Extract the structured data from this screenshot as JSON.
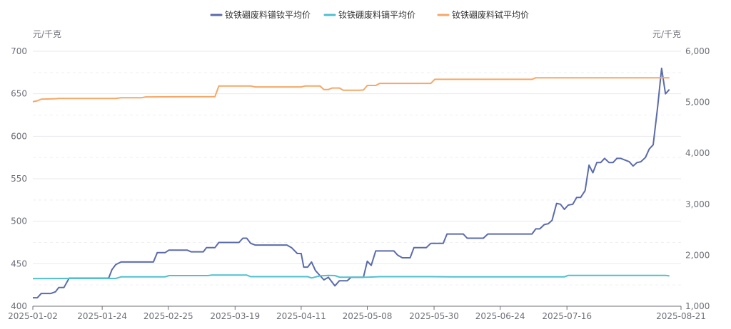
{
  "chart_data": {
    "type": "line",
    "left_unit": "元/千克",
    "right_unit": "元/千克",
    "left_axis": {
      "min": 400,
      "max": 700,
      "ticks": [
        "400",
        "450",
        "500",
        "550",
        "600",
        "650",
        "700"
      ]
    },
    "right_axis": {
      "min": 1000,
      "max": 6000,
      "ticks": [
        "1,000",
        "2,000",
        "3,000",
        "4,000",
        "5,000",
        "6,000"
      ]
    },
    "x_tick_labels": [
      "2025-01-02",
      "2025-01-24",
      "2025-02-25",
      "2025-03-19",
      "2025-04-11",
      "2025-05-08",
      "2025-05-30",
      "2025-06-24",
      "2025-07-16",
      "2025-08-21"
    ],
    "x_domain": [
      0,
      100
    ],
    "x_tick_positions": [
      0,
      10.7,
      20.9,
      31.2,
      41.4,
      51.6,
      61.9,
      72.1,
      82.4,
      100
    ],
    "series": [
      {
        "name": "钕铁硼废料镨钕平均价",
        "color": "#5b6bab",
        "axis": "left",
        "points": [
          [
            0,
            410
          ],
          [
            0.7,
            410
          ],
          [
            1.3,
            415
          ],
          [
            2.8,
            415
          ],
          [
            3.5,
            417
          ],
          [
            4.0,
            422
          ],
          [
            4.8,
            422
          ],
          [
            5.6,
            433
          ],
          [
            11.7,
            433
          ],
          [
            12.2,
            443
          ],
          [
            12.8,
            449
          ],
          [
            13.6,
            452
          ],
          [
            18.6,
            452
          ],
          [
            19.2,
            463
          ],
          [
            20.4,
            463
          ],
          [
            21.0,
            466
          ],
          [
            23.8,
            466
          ],
          [
            24.4,
            464
          ],
          [
            26.3,
            464
          ],
          [
            26.8,
            469
          ],
          [
            28.1,
            469
          ],
          [
            28.7,
            475
          ],
          [
            31.8,
            475
          ],
          [
            32.4,
            480
          ],
          [
            33.0,
            480
          ],
          [
            33.6,
            474
          ],
          [
            34.3,
            472
          ],
          [
            39.2,
            472
          ],
          [
            39.9,
            469
          ],
          [
            40.8,
            462
          ],
          [
            41.4,
            462
          ],
          [
            41.8,
            446
          ],
          [
            42.4,
            446
          ],
          [
            43.0,
            452
          ],
          [
            43.6,
            442
          ],
          [
            44.3,
            436
          ],
          [
            44.9,
            431
          ],
          [
            45.6,
            434
          ],
          [
            46.6,
            424
          ],
          [
            47.3,
            430
          ],
          [
            48.5,
            430
          ],
          [
            49.1,
            434
          ],
          [
            51.0,
            434
          ],
          [
            51.6,
            453
          ],
          [
            52.2,
            448
          ],
          [
            52.9,
            465
          ],
          [
            55.7,
            465
          ],
          [
            56.3,
            460
          ],
          [
            57.0,
            457
          ],
          [
            58.2,
            457
          ],
          [
            58.8,
            469
          ],
          [
            60.7,
            469
          ],
          [
            61.4,
            474
          ],
          [
            63.3,
            474
          ],
          [
            63.9,
            485
          ],
          [
            66.4,
            485
          ],
          [
            67.0,
            480
          ],
          [
            69.5,
            480
          ],
          [
            70.2,
            485
          ],
          [
            76.4,
            485
          ],
          [
            77.0,
            485
          ],
          [
            77.6,
            491
          ],
          [
            78.2,
            491
          ],
          [
            78.9,
            496
          ],
          [
            79.5,
            497
          ],
          [
            80.1,
            501
          ],
          [
            80.8,
            521
          ],
          [
            81.4,
            520
          ],
          [
            82.0,
            514
          ],
          [
            82.6,
            519
          ],
          [
            83.3,
            520
          ],
          [
            83.9,
            528
          ],
          [
            84.5,
            528
          ],
          [
            85.2,
            536
          ],
          [
            85.8,
            566
          ],
          [
            86.4,
            557
          ],
          [
            87.0,
            569
          ],
          [
            87.6,
            569
          ],
          [
            88.2,
            574
          ],
          [
            88.9,
            569
          ],
          [
            89.5,
            569
          ],
          [
            90.1,
            574
          ],
          [
            90.7,
            574
          ],
          [
            92.0,
            570
          ],
          [
            92.6,
            565
          ],
          [
            93.2,
            569
          ],
          [
            93.8,
            570
          ],
          [
            94.5,
            575
          ],
          [
            95.1,
            585
          ],
          [
            95.7,
            590
          ],
          [
            96.4,
            635
          ],
          [
            97.0,
            680
          ],
          [
            97.6,
            650
          ],
          [
            98.2,
            655
          ]
        ]
      },
      {
        "name": "钕铁硼废料镝平均价",
        "color": "#4ec0cf",
        "axis": "right",
        "points": [
          [
            0,
            1540
          ],
          [
            5.6,
            1545
          ],
          [
            12.8,
            1545
          ],
          [
            13.6,
            1575
          ],
          [
            20.4,
            1575
          ],
          [
            21.0,
            1600
          ],
          [
            27.0,
            1600
          ],
          [
            27.6,
            1610
          ],
          [
            33.0,
            1610
          ],
          [
            33.6,
            1580
          ],
          [
            42.4,
            1580
          ],
          [
            43.0,
            1555
          ],
          [
            44.3,
            1595
          ],
          [
            45.6,
            1605
          ],
          [
            46.6,
            1600
          ],
          [
            47.3,
            1570
          ],
          [
            51.6,
            1570
          ],
          [
            53.5,
            1580
          ],
          [
            61.4,
            1580
          ],
          [
            64.5,
            1575
          ],
          [
            82.0,
            1575
          ],
          [
            82.6,
            1605
          ],
          [
            97.6,
            1605
          ],
          [
            98.2,
            1595
          ]
        ]
      },
      {
        "name": "钕铁硼废料铽平均价",
        "color": "#f5a767",
        "axis": "right",
        "points": [
          [
            0,
            5010
          ],
          [
            0.7,
            5030
          ],
          [
            1.3,
            5060
          ],
          [
            3.5,
            5070
          ],
          [
            4.0,
            5075
          ],
          [
            12.8,
            5075
          ],
          [
            13.6,
            5090
          ],
          [
            16.8,
            5090
          ],
          [
            17.4,
            5105
          ],
          [
            28.1,
            5110
          ],
          [
            28.7,
            5320
          ],
          [
            33.6,
            5320
          ],
          [
            34.3,
            5300
          ],
          [
            41.4,
            5300
          ],
          [
            42.0,
            5320
          ],
          [
            44.3,
            5320
          ],
          [
            44.9,
            5250
          ],
          [
            45.6,
            5250
          ],
          [
            46.2,
            5280
          ],
          [
            47.3,
            5280
          ],
          [
            47.9,
            5235
          ],
          [
            50.4,
            5235
          ],
          [
            51.0,
            5240
          ],
          [
            51.6,
            5330
          ],
          [
            52.9,
            5330
          ],
          [
            53.5,
            5370
          ],
          [
            61.4,
            5370
          ],
          [
            62.0,
            5450
          ],
          [
            77.0,
            5450
          ],
          [
            77.6,
            5480
          ],
          [
            98.2,
            5480
          ]
        ]
      }
    ]
  }
}
